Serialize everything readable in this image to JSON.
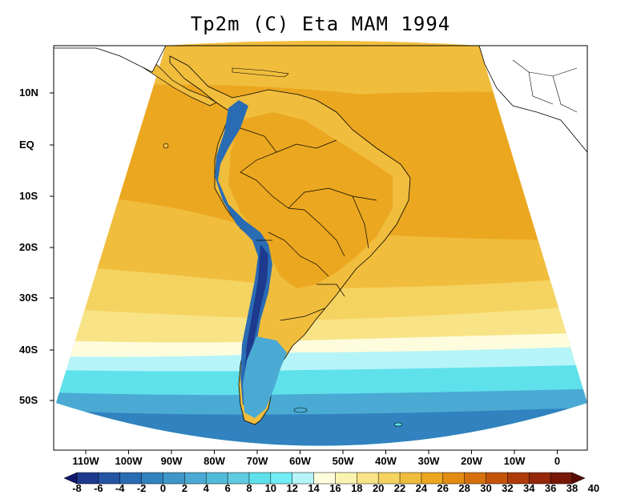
{
  "title": "Tp2m (C) Eta MAM 1994",
  "lat_labels": [
    "10N",
    "EQ",
    "10S",
    "20S",
    "30S",
    "40S",
    "50S"
  ],
  "lon_labels": [
    "110W",
    "100W",
    "90W",
    "80W",
    "70W",
    "60W",
    "50W",
    "40W",
    "30W",
    "20W",
    "10W",
    "0"
  ],
  "colorbar": {
    "labels": [
      "-8",
      "-6",
      "-4",
      "-2",
      "0",
      "2",
      "4",
      "6",
      "8",
      "10",
      "12",
      "14",
      "16",
      "18",
      "20",
      "22",
      "24",
      "26",
      "28",
      "30",
      "32",
      "34",
      "36",
      "38",
      "40"
    ],
    "colors": [
      "#10186e",
      "#1d3a8e",
      "#2454a4",
      "#2a6cb4",
      "#3182bf",
      "#3e97c8",
      "#4aaad3",
      "#52bbd8",
      "#5fcbe0",
      "#5fe1ec",
      "#73edf5",
      "#b5f4f8",
      "#fdfcdc",
      "#fbf3b0",
      "#f8e486",
      "#f5d361",
      "#f0bd3d",
      "#eba71f",
      "#e28c12",
      "#d6700c",
      "#c4540a",
      "#ae3b09",
      "#942707",
      "#761805",
      "#5a0b04"
    ],
    "zero_line": true
  },
  "field_colors": {
    "ocean_warm": "#eba71f",
    "ocean_mid": "#f0bd3d",
    "ocean_cool": "#f5d361",
    "ocean_pale": "#f8e486",
    "cream": "#fdfcdc",
    "light_cyan": "#b5f4f8",
    "cyan": "#5fe1ec",
    "teal": "#4aaad3",
    "deep": "#3182bf",
    "andes_blue": "#2a6cb4",
    "andes_dark": "#1d3a8e",
    "coast": "#000000"
  },
  "map": {
    "projection": "conic",
    "lon_range": [
      -118,
      6
    ],
    "lat_range": [
      -60,
      14
    ]
  }
}
